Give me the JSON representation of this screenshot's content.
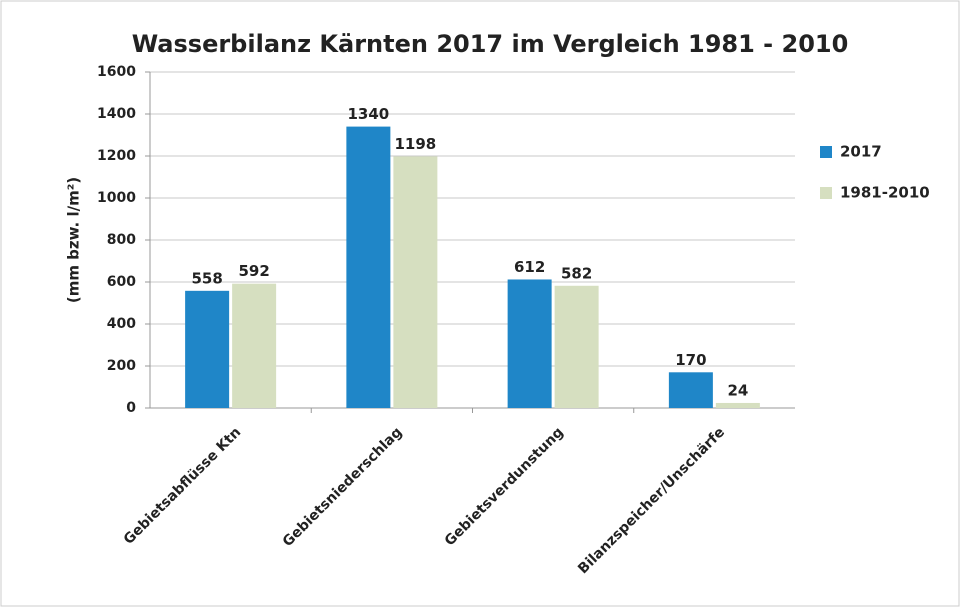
{
  "chart_data": {
    "type": "bar",
    "title": "Wasserbilanz Kärnten 2017 im Vergleich 1981 - 2010",
    "y_label": "(mm bzw. l/m²)",
    "categories": [
      "Gebietsabflüsse Ktn",
      "Gebietsniederschlag",
      "Gebietsverdunstung",
      "Bilanzspeicher/Unschärfe"
    ],
    "series": [
      {
        "name": "2017",
        "color": "#1f86c8",
        "values": [
          558,
          1340,
          612,
          170
        ]
      },
      {
        "name": "1981-2010",
        "color": "#d6dfc0",
        "values": [
          592,
          1198,
          582,
          24
        ]
      }
    ],
    "ylim": [
      0,
      1600
    ],
    "yticks": [
      0,
      200,
      400,
      600,
      800,
      1000,
      1200,
      1400,
      1600
    ],
    "grid": true,
    "legend": "right"
  }
}
